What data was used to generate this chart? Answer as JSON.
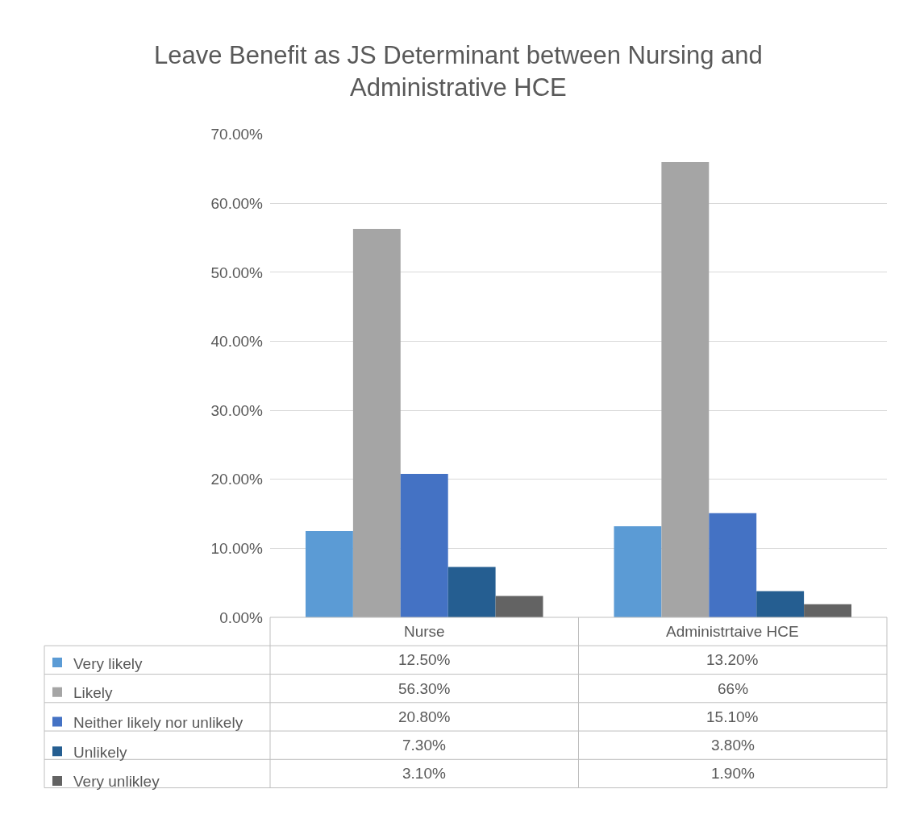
{
  "chart_data": {
    "type": "bar",
    "title": "Leave Benefit as JS Determinant between Nursing and Administrative HCE",
    "categories": [
      "Nurse",
      "Administrtaive HCE"
    ],
    "series": [
      {
        "name": "Very likely",
        "color": "#5b9bd5",
        "values": [
          12.5,
          13.2
        ],
        "value_labels": [
          "12.50%",
          "13.20%"
        ]
      },
      {
        "name": "Likely",
        "color": "#a5a5a5",
        "values": [
          56.3,
          66
        ],
        "value_labels": [
          "56.30%",
          "66%"
        ]
      },
      {
        "name": "Neither likely nor unlikely",
        "color": "#4472c4",
        "values": [
          20.8,
          15.1
        ],
        "value_labels": [
          "20.80%",
          "15.10%"
        ]
      },
      {
        "name": "Unlikely",
        "color": "#255e91",
        "values": [
          7.3,
          3.8
        ],
        "value_labels": [
          "7.30%",
          "3.80%"
        ]
      },
      {
        "name": "Very unlikley",
        "color": "#636363",
        "values": [
          3.1,
          1.9
        ],
        "value_labels": [
          "3.10%",
          "1.90%"
        ]
      }
    ],
    "ylim": [
      0,
      70
    ],
    "yticks": [
      {
        "value": 0,
        "label": "0.00%"
      },
      {
        "value": 10,
        "label": "10.00%"
      },
      {
        "value": 20,
        "label": "20.00%"
      },
      {
        "value": 30,
        "label": "30.00%"
      },
      {
        "value": 40,
        "label": "40.00%"
      },
      {
        "value": 50,
        "label": "50.00%"
      },
      {
        "value": 60,
        "label": "60.00%"
      },
      {
        "value": 70,
        "label": "70.00%"
      }
    ],
    "grid": "y",
    "legend": "bottom left"
  }
}
